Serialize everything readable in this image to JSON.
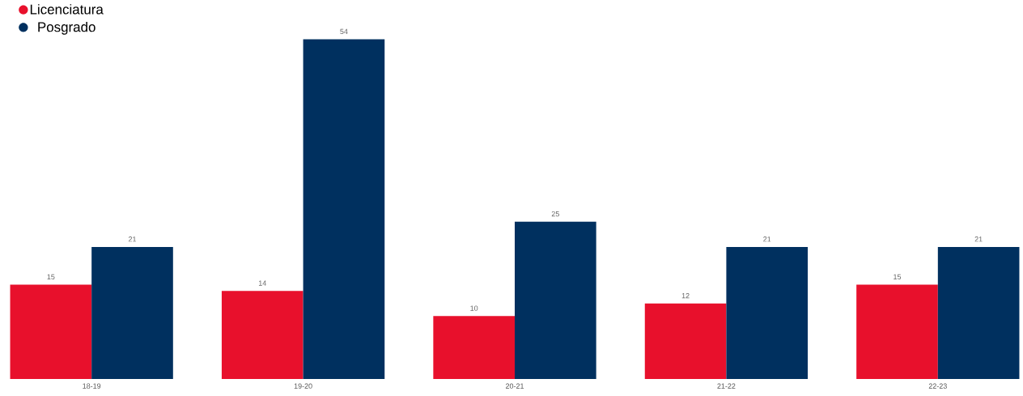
{
  "chart_data": {
    "type": "bar",
    "categories": [
      "18-19",
      "19-20",
      "20-21",
      "21-22",
      "22-23"
    ],
    "series": [
      {
        "name": "Licenciatura",
        "color": "#e8102c",
        "values": [
          15,
          14,
          10,
          12,
          15
        ]
      },
      {
        "name": "Posgrado",
        "color": "#00305f",
        "values": [
          21,
          54,
          25,
          21,
          21
        ]
      }
    ],
    "data_labels": true,
    "legend": "top left",
    "tick_labels": "x"
  }
}
